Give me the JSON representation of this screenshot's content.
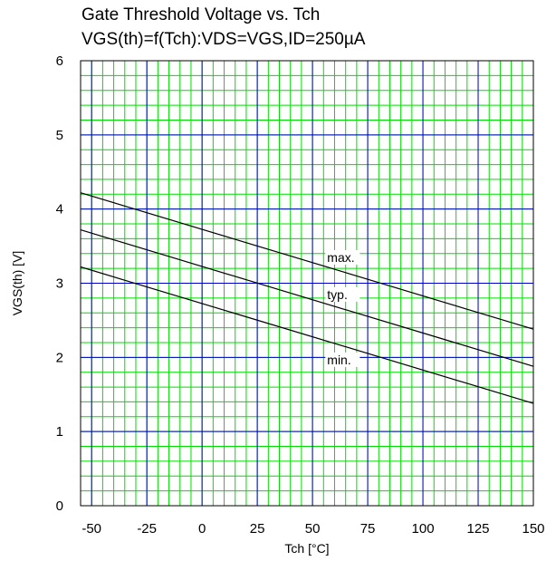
{
  "chart_data": {
    "type": "line",
    "title": "Gate Threshold Voltage vs. Tch",
    "subtitle": "VGS(th)=f(Tch):VDS=VGS,ID=250µA",
    "xlabel": "Tch [°C]",
    "ylabel": "VGS(th) [V]",
    "xlim": [
      -55,
      150
    ],
    "ylim": [
      0,
      6
    ],
    "x_ticks": [
      -50,
      -25,
      0,
      25,
      50,
      75,
      100,
      125,
      150
    ],
    "y_ticks": [
      0,
      1,
      2,
      3,
      4,
      5,
      6
    ],
    "grid": true,
    "minor_grid_color": "#00dd00",
    "major_grid_color": "#0000cc",
    "series": [
      {
        "name": "max.",
        "x": [
          -55,
          150
        ],
        "y": [
          4.22,
          2.38
        ],
        "label_at": [
          55,
          3.3
        ]
      },
      {
        "name": "typ.",
        "x": [
          -55,
          150
        ],
        "y": [
          3.72,
          1.88
        ],
        "label_at": [
          55,
          2.8
        ]
      },
      {
        "name": "min.",
        "x": [
          -55,
          150
        ],
        "y": [
          3.22,
          1.38
        ],
        "label_at": [
          55,
          1.92
        ]
      }
    ]
  }
}
